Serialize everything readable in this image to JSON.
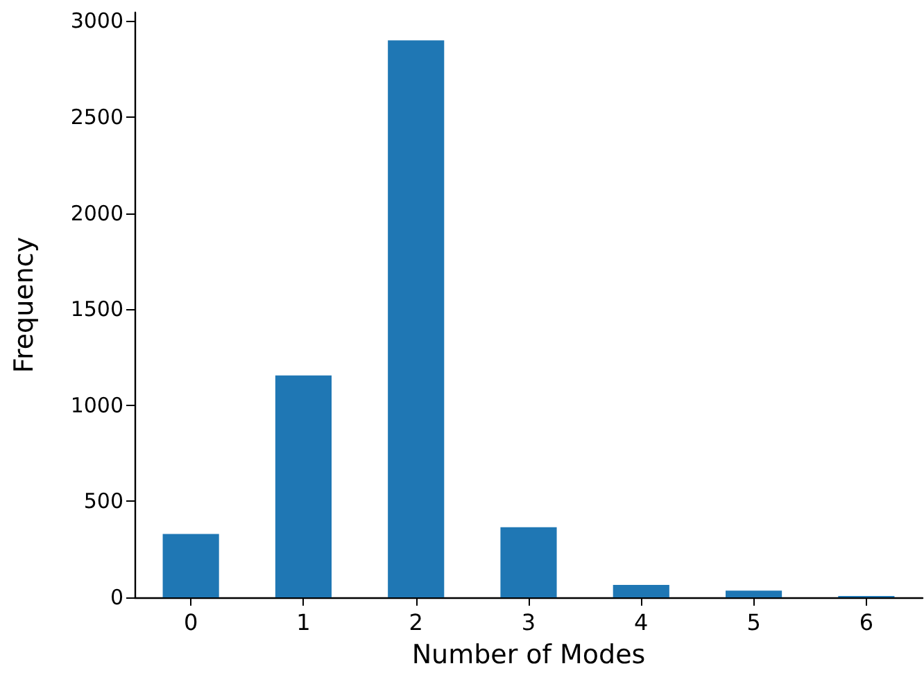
{
  "chart_data": {
    "type": "bar",
    "xlabel": "Number of Modes",
    "ylabel": "Frequency",
    "categories": [
      "0",
      "1",
      "2",
      "3",
      "4",
      "5",
      "6"
    ],
    "values": [
      330,
      1155,
      2900,
      365,
      65,
      35,
      7
    ],
    "color": "#1f77b4",
    "ylim": [
      0,
      3045
    ],
    "yticks": [
      0,
      500,
      1000,
      1500,
      2000,
      2500,
      3000
    ],
    "grid": false
  }
}
